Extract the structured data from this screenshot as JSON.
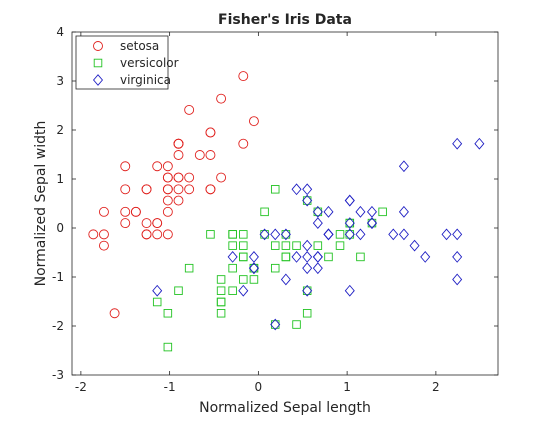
{
  "chart_data": {
    "type": "scatter",
    "title": "Fisher's Iris Data",
    "xlabel": "Normalized Sepal length",
    "ylabel": "Normalized Sepal width",
    "xlim": [
      -2.1,
      2.7
    ],
    "ylim": [
      -3,
      4
    ],
    "xticks": [
      -2,
      -1,
      0,
      1,
      2
    ],
    "yticks": [
      -3,
      -2,
      -1,
      0,
      1,
      2,
      3,
      4
    ],
    "grid": false,
    "legend_position": "top-left",
    "series": [
      {
        "name": "setosa",
        "marker": "circle",
        "color": "#e0221f",
        "points": [
          [
            -0.9,
            1.03
          ],
          [
            -1.14,
            -0.13
          ],
          [
            -1.38,
            0.33
          ],
          [
            -1.5,
            0.1
          ],
          [
            -1.02,
            1.26
          ],
          [
            -0.54,
            1.95
          ],
          [
            -1.5,
            0.79
          ],
          [
            -1.02,
            0.79
          ],
          [
            -1.74,
            -0.36
          ],
          [
            -1.14,
            0.1
          ],
          [
            -0.54,
            1.49
          ],
          [
            -1.26,
            0.79
          ],
          [
            -1.26,
            -0.13
          ],
          [
            -1.86,
            -0.13
          ],
          [
            -0.05,
            2.18
          ],
          [
            -0.17,
            3.1
          ],
          [
            -0.54,
            1.95
          ],
          [
            -0.9,
            1.03
          ],
          [
            -0.17,
            1.72
          ],
          [
            -0.9,
            1.72
          ],
          [
            -0.54,
            0.79
          ],
          [
            -0.9,
            1.49
          ],
          [
            -1.5,
            1.26
          ],
          [
            -0.9,
            0.56
          ],
          [
            -1.26,
            0.79
          ],
          [
            -1.02,
            -0.13
          ],
          [
            -1.02,
            0.79
          ],
          [
            -0.78,
            1.03
          ],
          [
            -0.78,
            0.79
          ],
          [
            -1.38,
            0.33
          ],
          [
            -1.26,
            0.1
          ],
          [
            -0.54,
            0.79
          ],
          [
            -0.78,
            2.41
          ],
          [
            -0.42,
            2.64
          ],
          [
            -1.14,
            0.1
          ],
          [
            -1.02,
            0.33
          ],
          [
            -0.42,
            1.03
          ],
          [
            -1.14,
            1.26
          ],
          [
            -1.74,
            -0.13
          ],
          [
            -0.9,
            0.79
          ],
          [
            -1.02,
            1.03
          ],
          [
            -1.62,
            -1.74
          ],
          [
            -1.74,
            0.33
          ],
          [
            -1.02,
            1.03
          ],
          [
            -0.9,
            1.72
          ],
          [
            -1.26,
            -0.13
          ],
          [
            -0.9,
            1.72
          ],
          [
            -1.5,
            0.33
          ],
          [
            -0.66,
            1.49
          ],
          [
            -1.02,
            0.56
          ]
        ]
      },
      {
        "name": "versicolor",
        "marker": "square",
        "color": "#22c322",
        "points": [
          [
            1.4,
            0.33
          ],
          [
            0.67,
            0.33
          ],
          [
            1.28,
            0.1
          ],
          [
            -0.42,
            -1.74
          ],
          [
            0.79,
            -0.59
          ],
          [
            -0.17,
            -0.59
          ],
          [
            0.55,
            0.56
          ],
          [
            -1.14,
            -1.51
          ],
          [
            0.92,
            -0.36
          ],
          [
            -0.78,
            -0.82
          ],
          [
            -1.02,
            -2.43
          ],
          [
            0.07,
            -0.13
          ],
          [
            0.19,
            -1.97
          ],
          [
            0.31,
            -0.36
          ],
          [
            -0.29,
            -0.36
          ],
          [
            1.03,
            0.1
          ],
          [
            -0.29,
            -0.13
          ],
          [
            -0.05,
            -0.82
          ],
          [
            0.43,
            -1.97
          ],
          [
            -0.29,
            -1.28
          ],
          [
            0.07,
            0.33
          ],
          [
            0.31,
            -0.59
          ],
          [
            0.55,
            -1.28
          ],
          [
            0.31,
            -0.59
          ],
          [
            0.67,
            -0.36
          ],
          [
            0.92,
            -0.13
          ],
          [
            1.15,
            -0.59
          ],
          [
            1.03,
            -0.13
          ],
          [
            0.19,
            -0.36
          ],
          [
            -0.17,
            -1.05
          ],
          [
            -0.42,
            -1.51
          ],
          [
            -0.42,
            -1.51
          ],
          [
            -0.05,
            -0.82
          ],
          [
            0.19,
            -0.82
          ],
          [
            -0.54,
            -0.13
          ],
          [
            0.19,
            0.79
          ],
          [
            1.03,
            0.1
          ],
          [
            0.55,
            -1.74
          ],
          [
            -0.29,
            -0.13
          ],
          [
            -0.42,
            -1.28
          ],
          [
            -0.42,
            -1.05
          ],
          [
            0.31,
            -0.13
          ],
          [
            -0.05,
            -1.05
          ],
          [
            -1.02,
            -1.74
          ],
          [
            -0.29,
            -0.82
          ],
          [
            -0.17,
            -0.13
          ],
          [
            -0.17,
            -0.36
          ],
          [
            0.43,
            -0.36
          ],
          [
            -0.9,
            -1.28
          ],
          [
            -0.17,
            -0.59
          ]
        ]
      },
      {
        "name": "virginica",
        "marker": "diamond",
        "color": "#2121c4",
        "points": [
          [
            0.55,
            0.56
          ],
          [
            -0.05,
            -0.82
          ],
          [
            1.52,
            -0.13
          ],
          [
            0.55,
            -0.36
          ],
          [
            0.79,
            -0.13
          ],
          [
            2.12,
            -0.13
          ],
          [
            -1.14,
            -1.28
          ],
          [
            1.76,
            -0.36
          ],
          [
            1.03,
            -1.28
          ],
          [
            1.64,
            1.26
          ],
          [
            0.79,
            0.33
          ],
          [
            0.67,
            -0.82
          ],
          [
            1.15,
            -0.13
          ],
          [
            -0.17,
            -1.28
          ],
          [
            -0.05,
            -0.59
          ],
          [
            0.67,
            0.33
          ],
          [
            0.79,
            -0.13
          ],
          [
            2.24,
            1.72
          ],
          [
            2.24,
            -1.05
          ],
          [
            0.19,
            -1.97
          ],
          [
            1.28,
            0.33
          ],
          [
            -0.29,
            -0.59
          ],
          [
            2.24,
            -0.59
          ],
          [
            0.55,
            -0.82
          ],
          [
            1.03,
            0.56
          ],
          [
            1.64,
            0.33
          ],
          [
            0.43,
            -0.59
          ],
          [
            0.31,
            -0.13
          ],
          [
            0.67,
            -0.59
          ],
          [
            1.64,
            -0.13
          ],
          [
            1.88,
            -0.59
          ],
          [
            2.49,
            1.72
          ],
          [
            0.67,
            -0.59
          ],
          [
            0.55,
            -0.59
          ],
          [
            0.31,
            -1.05
          ],
          [
            2.24,
            -0.13
          ],
          [
            0.55,
            0.79
          ],
          [
            0.67,
            0.1
          ],
          [
            0.19,
            -0.13
          ],
          [
            1.28,
            0.1
          ],
          [
            1.03,
            0.1
          ],
          [
            1.28,
            0.1
          ],
          [
            -0.05,
            -0.82
          ],
          [
            1.15,
            0.33
          ],
          [
            1.03,
            0.56
          ],
          [
            1.03,
            -0.13
          ],
          [
            0.55,
            -1.28
          ],
          [
            0.79,
            -0.13
          ],
          [
            0.43,
            0.79
          ],
          [
            0.07,
            -0.13
          ]
        ]
      }
    ]
  }
}
